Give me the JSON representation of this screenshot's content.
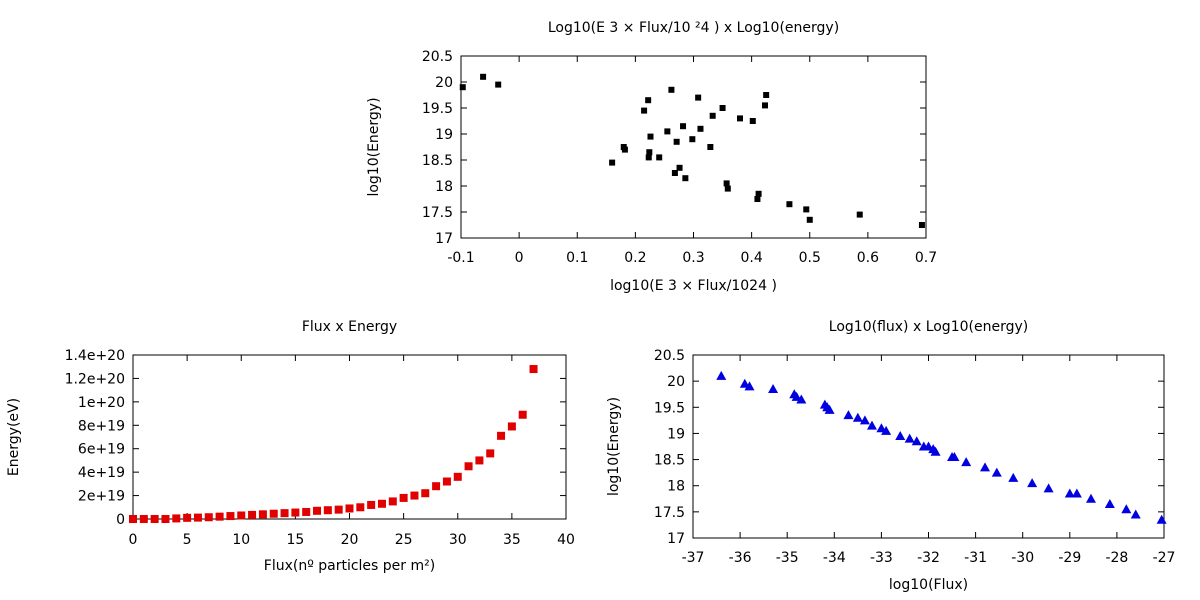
{
  "chart_data": [
    {
      "id": "top",
      "type": "scatter",
      "title": "Log10(E 3 × Flux/10 ²4 ) x Log10(energy)",
      "xlabel": "log10(E 3 × Flux/1024 )",
      "ylabel": "log10(Energy)",
      "xlim": [
        -0.1,
        0.7
      ],
      "ylim": [
        17,
        20.5
      ],
      "xticks": [
        -0.1,
        0,
        0.1,
        0.2,
        0.3,
        0.4,
        0.5,
        0.6,
        0.7
      ],
      "xtick_labels": [
        "-0.1",
        "0",
        "0.1",
        "0.2",
        "0.3",
        "0.4",
        "0.5",
        "0.6",
        "0.7"
      ],
      "yticks": [
        17,
        17.5,
        18,
        18.5,
        19,
        19.5,
        20,
        20.5
      ],
      "ytick_labels": [
        "17",
        "17.5",
        "18",
        "18.5",
        "19",
        "19.5",
        "20",
        "20.5"
      ],
      "grid": false,
      "marker": "square",
      "color": "#000000",
      "x": [
        -0.097,
        -0.062,
        -0.036,
        0.16,
        0.18,
        0.182,
        0.215,
        0.222,
        0.223,
        0.224,
        0.226,
        0.241,
        0.255,
        0.262,
        0.268,
        0.271,
        0.276,
        0.282,
        0.286,
        0.298,
        0.308,
        0.312,
        0.329,
        0.333,
        0.35,
        0.357,
        0.359,
        0.38,
        0.402,
        0.41,
        0.412,
        0.423,
        0.425,
        0.465,
        0.494,
        0.5,
        0.586,
        0.693
      ],
      "y": [
        19.9,
        20.1,
        19.95,
        18.45,
        18.75,
        18.7,
        19.45,
        19.65,
        18.55,
        18.65,
        18.95,
        18.55,
        19.05,
        19.85,
        18.25,
        18.85,
        18.35,
        19.15,
        18.15,
        18.9,
        19.7,
        19.1,
        18.75,
        19.35,
        19.5,
        18.05,
        17.95,
        19.3,
        19.25,
        17.75,
        17.85,
        19.55,
        19.75,
        17.65,
        17.55,
        17.35,
        17.45,
        17.25
      ]
    },
    {
      "id": "left",
      "type": "scatter",
      "title": "Flux x Energy",
      "xlabel": "Flux(nº particles per m²)",
      "ylabel": "Energy(eV)",
      "xlim": [
        0,
        40
      ],
      "ylim": [
        0,
        1.4e+20
      ],
      "xticks": [
        0,
        5,
        10,
        15,
        20,
        25,
        30,
        35,
        40
      ],
      "xtick_labels": [
        "0",
        "5",
        "10",
        "15",
        "20",
        "25",
        "30",
        "35",
        "40"
      ],
      "yticks": [
        0,
        2e+19,
        4e+19,
        6e+19,
        8e+19,
        1e+20,
        1.2e+20,
        1.4e+20
      ],
      "ytick_labels": [
        "0",
        "2e+19",
        "4e+19",
        "6e+19",
        "8e+19",
        "1e+20",
        "1.2e+20",
        "1.4e+20"
      ],
      "grid": false,
      "marker": "square",
      "color": "#e00000",
      "x": [
        0,
        1,
        2,
        3,
        4,
        5,
        6,
        7,
        8,
        9,
        10,
        11,
        12,
        13,
        14,
        15,
        16,
        17,
        18,
        19,
        20,
        21,
        22,
        23,
        24,
        25,
        26,
        27,
        28,
        29,
        30,
        31,
        32,
        33,
        34,
        35,
        36,
        37
      ],
      "y": [
        0,
        0,
        0,
        0,
        5e+17,
        1e+18,
        1.2e+18,
        1.5e+18,
        2e+18,
        2.5e+18,
        3e+18,
        3.5e+18,
        4e+18,
        4.5e+18,
        5e+18,
        5.5e+18,
        6e+18,
        7e+18,
        7.5e+18,
        8e+18,
        9e+18,
        1e+19,
        1.2e+19,
        1.3e+19,
        1.5e+19,
        1.8e+19,
        2e+19,
        2.2e+19,
        2.8e+19,
        3.2e+19,
        3.6e+19,
        4.5e+19,
        5e+19,
        5.6e+19,
        7.1e+19,
        7.9e+19,
        8.9e+19,
        1.28e+20
      ]
    },
    {
      "id": "right",
      "type": "scatter",
      "title": "Log10(flux) x Log10(energy)",
      "xlabel": "log10(Flux)",
      "ylabel": "log10(Energy)",
      "xlim": [
        -37,
        -27
      ],
      "ylim": [
        17,
        20.5
      ],
      "xticks": [
        -37,
        -36,
        -35,
        -34,
        -33,
        -32,
        -31,
        -30,
        -29,
        -28,
        -27
      ],
      "xtick_labels": [
        "-37",
        "-36",
        "-35",
        "-34",
        "-33",
        "-32",
        "-31",
        "-30",
        "-29",
        "-28",
        "-27"
      ],
      "yticks": [
        17,
        17.5,
        18,
        18.5,
        19,
        19.5,
        20,
        20.5
      ],
      "ytick_labels": [
        "17",
        "17.5",
        "18",
        "18.5",
        "19",
        "19.5",
        "20",
        "20.5"
      ],
      "grid": false,
      "marker": "triangle",
      "color": "#0000e0",
      "x": [
        -36.4,
        -35.9,
        -35.8,
        -35.3,
        -34.85,
        -34.8,
        -34.7,
        -34.2,
        -34.15,
        -34.1,
        -33.7,
        -33.5,
        -33.35,
        -33.2,
        -33.0,
        -32.9,
        -32.6,
        -32.4,
        -32.25,
        -32.1,
        -32.0,
        -31.9,
        -31.85,
        -31.5,
        -31.45,
        -31.2,
        -30.8,
        -30.55,
        -30.2,
        -29.8,
        -29.45,
        -29.0,
        -28.85,
        -28.55,
        -28.15,
        -27.8,
        -27.6,
        -27.05
      ],
      "y": [
        20.1,
        19.95,
        19.9,
        19.85,
        19.75,
        19.7,
        19.65,
        19.55,
        19.5,
        19.45,
        19.35,
        19.3,
        19.25,
        19.15,
        19.1,
        19.05,
        18.95,
        18.9,
        18.85,
        18.75,
        18.75,
        18.7,
        18.65,
        18.55,
        18.55,
        18.45,
        18.35,
        18.25,
        18.15,
        18.05,
        17.95,
        17.85,
        17.85,
        17.75,
        17.65,
        17.55,
        17.45,
        17.35
      ]
    }
  ]
}
